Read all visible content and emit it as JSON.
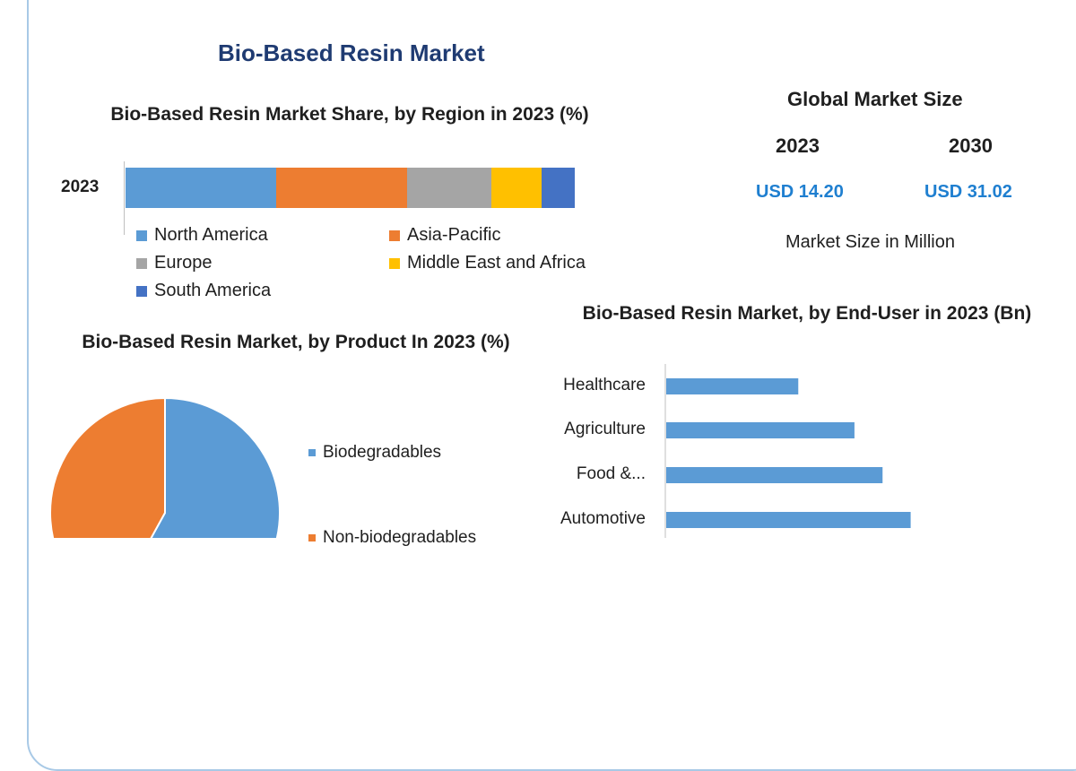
{
  "title": "Bio-Based Resin Market",
  "market_size": {
    "title": "Global Market Size",
    "year_a": "2023",
    "year_b": "2030",
    "value_a": "USD 14.20",
    "value_b": "USD 31.02",
    "unit_label": "Market Size in Million"
  },
  "colors": {
    "north_america": "#5b9bd5",
    "asia_pacific": "#ed7d31",
    "europe": "#a5a5a5",
    "mea": "#ffc000",
    "south_america": "#4472c4",
    "bars": "#5b9bd5",
    "brand_title": "#1f3b72",
    "value_blue": "#1f7fd0"
  },
  "chart_data": [
    {
      "type": "bar",
      "orientation": "horizontal-stacked",
      "title": "Bio-Based Resin Market Share, by Region in 2023 (%)",
      "categories": [
        "2023"
      ],
      "series": [
        {
          "name": "North America",
          "values": [
            33.5
          ]
        },
        {
          "name": "Asia-Pacific",
          "values": [
            29.2
          ]
        },
        {
          "name": "Europe",
          "values": [
            18.8
          ]
        },
        {
          "name": "Middle East and Africa",
          "values": [
            11.2
          ]
        },
        {
          "name": "South America",
          "values": [
            7.3
          ]
        }
      ],
      "legend_position": "bottom"
    },
    {
      "type": "pie",
      "title": "Bio-Based Resin Market, by Product In 2023 (%)",
      "labels": [
        "Biodegradables",
        "Non-biodegradables"
      ],
      "values": [
        58,
        42
      ],
      "legend_position": "right"
    },
    {
      "type": "bar",
      "orientation": "horizontal",
      "title": "Bio-Based Resin Market, by End-User in 2023 (Bn)",
      "categories": [
        "Healthcare",
        "Agriculture",
        "Food &...",
        "Automotive"
      ],
      "values": [
        4.7,
        6.7,
        7.7,
        8.7
      ],
      "xlim": [
        0,
        12
      ]
    }
  ]
}
